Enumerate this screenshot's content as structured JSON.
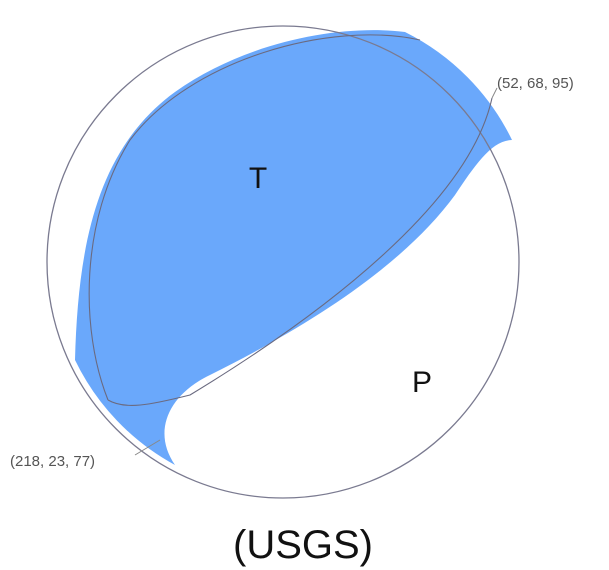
{
  "diagram": {
    "labels": {
      "tension": "T",
      "pressure": "P"
    },
    "planes": [
      "(52, 68, 95)",
      "(218, 23, 77)"
    ],
    "caption": "(USGS)"
  }
}
